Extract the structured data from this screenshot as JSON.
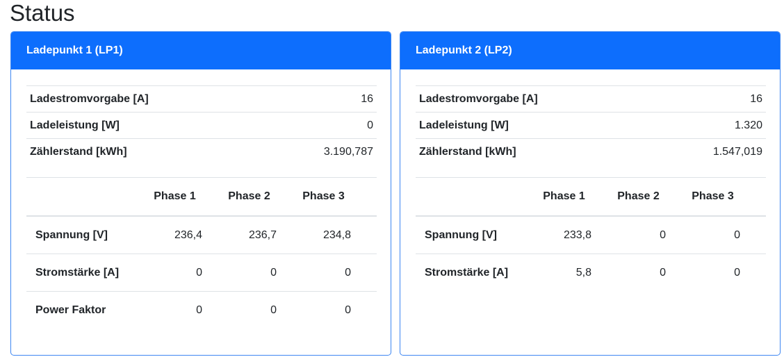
{
  "page_title": "Status",
  "cards": [
    {
      "title": "Ladepunkt 1 (LP1)",
      "kv": [
        {
          "label": "Ladestromvorgabe [A]",
          "value": "16"
        },
        {
          "label": "Ladeleistung [W]",
          "value": "0"
        },
        {
          "label": "Zählerstand [kWh]",
          "value": "3.190,787"
        }
      ],
      "phase_headers": [
        "Phase 1",
        "Phase 2",
        "Phase 3"
      ],
      "phase_rows": [
        {
          "label": "Spannung [V]",
          "values": [
            "236,4",
            "236,7",
            "234,8"
          ]
        },
        {
          "label": "Stromstärke [A]",
          "values": [
            "0",
            "0",
            "0"
          ]
        },
        {
          "label": "Power Faktor",
          "values": [
            "0",
            "0",
            "0"
          ]
        }
      ]
    },
    {
      "title": "Ladepunkt 2 (LP2)",
      "kv": [
        {
          "label": "Ladestromvorgabe [A]",
          "value": "16"
        },
        {
          "label": "Ladeleistung [W]",
          "value": "1.320"
        },
        {
          "label": "Zählerstand [kWh]",
          "value": "1.547,019"
        }
      ],
      "phase_headers": [
        "Phase 1",
        "Phase 2",
        "Phase 3"
      ],
      "phase_rows": [
        {
          "label": "Spannung [V]",
          "values": [
            "233,8",
            "0",
            "0"
          ]
        },
        {
          "label": "Stromstärke [A]",
          "values": [
            "5,8",
            "0",
            "0"
          ]
        }
      ]
    }
  ],
  "colors": {
    "header_blue": "#0d6efd",
    "border_blue": "#3d86f2"
  }
}
